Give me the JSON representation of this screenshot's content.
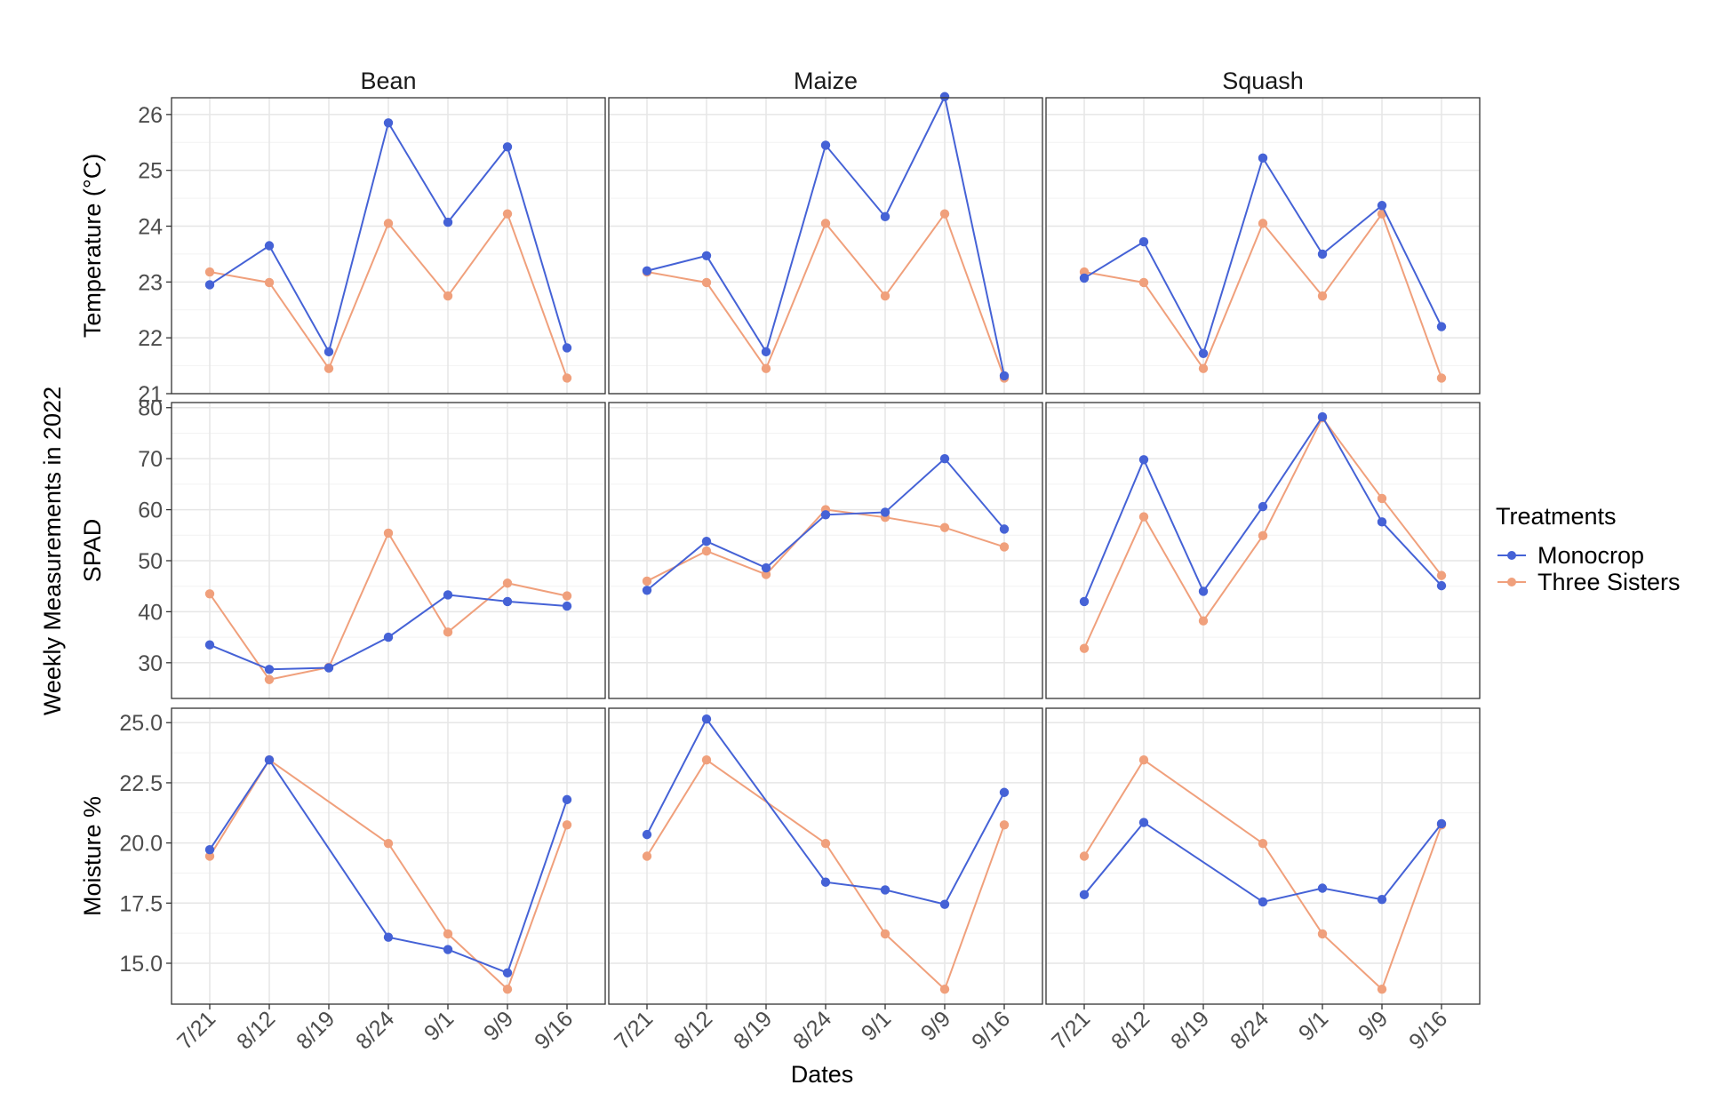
{
  "chart_data": {
    "type": "line",
    "y_overall_label": "Weekly Measurements in 2022",
    "xlabel": "Dates",
    "x": [
      "7/21",
      "8/12",
      "8/19",
      "8/24",
      "9/1",
      "9/9",
      "9/16"
    ],
    "facet_columns": [
      "Bean",
      "Maize",
      "Squash"
    ],
    "legend": {
      "title": "Treatments",
      "position": "right",
      "entries": [
        "Monocrop",
        "Three Sisters"
      ]
    },
    "colors": {
      "Monocrop": "#4562d6",
      "Three Sisters": "#f0a07c"
    },
    "grid": true,
    "rows": [
      {
        "ylabel": "Temperature (°C)",
        "ylim": [
          21,
          26.3
        ],
        "yticks": [
          "21",
          "22",
          "23",
          "24",
          "25",
          "26"
        ],
        "ytick_values": [
          21,
          22,
          23,
          24,
          25,
          26
        ],
        "panels": [
          {
            "facet": "Bean",
            "series": [
              {
                "name": "Monocrop",
                "values": [
                  22.95,
                  23.65,
                  21.75,
                  25.85,
                  24.07,
                  25.42,
                  21.82
                ]
              },
              {
                "name": "Three Sisters",
                "values": [
                  23.18,
                  22.99,
                  21.45,
                  24.05,
                  22.75,
                  24.22,
                  21.28
                ]
              }
            ]
          },
          {
            "facet": "Maize",
            "series": [
              {
                "name": "Monocrop",
                "values": [
                  23.2,
                  23.47,
                  21.75,
                  25.45,
                  24.17,
                  26.32,
                  21.32
                ]
              },
              {
                "name": "Three Sisters",
                "values": [
                  23.18,
                  22.99,
                  21.45,
                  24.05,
                  22.75,
                  24.22,
                  21.28
                ]
              }
            ]
          },
          {
            "facet": "Squash",
            "series": [
              {
                "name": "Monocrop",
                "values": [
                  23.07,
                  23.72,
                  21.72,
                  25.22,
                  23.5,
                  24.37,
                  22.2
                ]
              },
              {
                "name": "Three Sisters",
                "values": [
                  23.18,
                  22.99,
                  21.45,
                  24.05,
                  22.75,
                  24.22,
                  21.28
                ]
              }
            ]
          }
        ]
      },
      {
        "ylabel": "SPAD",
        "ylim": [
          23,
          81
        ],
        "yticks": [
          "30",
          "40",
          "50",
          "60",
          "70",
          "80"
        ],
        "ytick_values": [
          30,
          40,
          50,
          60,
          70,
          80
        ],
        "panels": [
          {
            "facet": "Bean",
            "series": [
              {
                "name": "Monocrop",
                "values": [
                  33.5,
                  28.7,
                  29.0,
                  35.0,
                  43.3,
                  42.0,
                  41.1
                ]
              },
              {
                "name": "Three Sisters",
                "values": [
                  43.5,
                  26.7,
                  29.1,
                  55.4,
                  36.0,
                  45.6,
                  43.1
                ]
              }
            ]
          },
          {
            "facet": "Maize",
            "series": [
              {
                "name": "Monocrop",
                "values": [
                  44.2,
                  53.8,
                  48.6,
                  59.0,
                  59.5,
                  70.0,
                  56.2
                ]
              },
              {
                "name": "Three Sisters",
                "values": [
                  46.0,
                  51.9,
                  47.3,
                  60.0,
                  58.5,
                  56.5,
                  52.7
                ]
              }
            ]
          },
          {
            "facet": "Squash",
            "series": [
              {
                "name": "Monocrop",
                "values": [
                  42.0,
                  69.8,
                  44.0,
                  60.6,
                  78.2,
                  57.6,
                  45.1
                ]
              },
              {
                "name": "Three Sisters",
                "values": [
                  32.8,
                  58.6,
                  38.2,
                  54.9,
                  78.0,
                  62.2,
                  47.1
                ]
              }
            ]
          }
        ]
      },
      {
        "ylabel": "Moisture %",
        "ylim": [
          13.3,
          25.6
        ],
        "yticks": [
          "15.0",
          "17.5",
          "20.0",
          "22.5",
          "25.0"
        ],
        "ytick_values": [
          15.0,
          17.5,
          20.0,
          22.5,
          25.0
        ],
        "panels": [
          {
            "facet": "Bean",
            "series": [
              {
                "name": "Monocrop",
                "values": [
                  19.72,
                  23.45,
                  null,
                  16.08,
                  15.57,
                  14.6,
                  21.8
                ]
              },
              {
                "name": "Three Sisters",
                "values": [
                  19.45,
                  23.45,
                  null,
                  19.98,
                  16.22,
                  13.92,
                  20.75
                ]
              }
            ]
          },
          {
            "facet": "Maize",
            "series": [
              {
                "name": "Monocrop",
                "values": [
                  20.35,
                  25.15,
                  null,
                  18.37,
                  18.05,
                  17.45,
                  22.1
                ]
              },
              {
                "name": "Three Sisters",
                "values": [
                  19.45,
                  23.45,
                  null,
                  19.98,
                  16.22,
                  13.92,
                  20.75
                ]
              }
            ]
          },
          {
            "facet": "Squash",
            "series": [
              {
                "name": "Monocrop",
                "values": [
                  17.85,
                  20.85,
                  null,
                  17.55,
                  18.12,
                  17.65,
                  20.8
                ]
              },
              {
                "name": "Three Sisters",
                "values": [
                  19.45,
                  23.45,
                  null,
                  19.98,
                  16.22,
                  13.92,
                  20.75
                ]
              }
            ]
          }
        ]
      }
    ]
  }
}
